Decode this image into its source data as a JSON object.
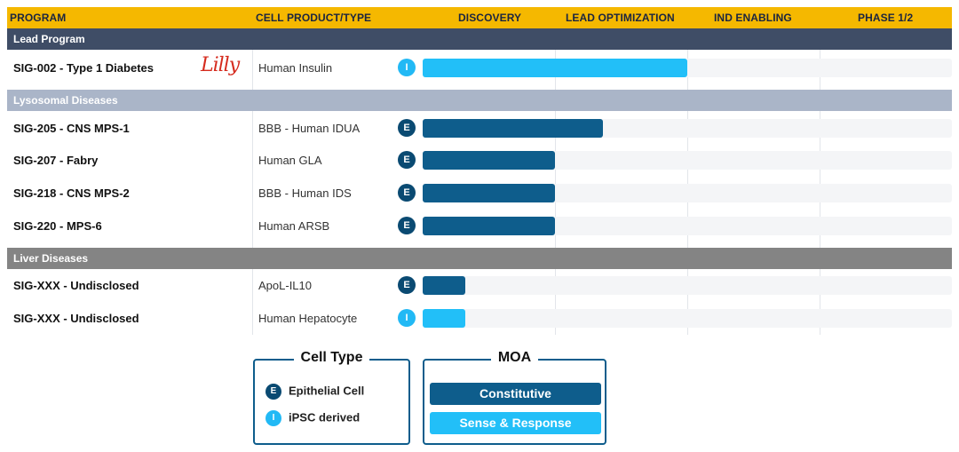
{
  "header": {
    "program": "PROGRAM",
    "cell_product": "CELL PRODUCT/TYPE",
    "phases": [
      "DISCOVERY",
      "LEAD OPTIMIZATION",
      "IND ENABLING",
      "PHASE 1/2"
    ]
  },
  "sections": {
    "lead": "Lead Program",
    "lysosomal": "Lysosomal Diseases",
    "liver": "Liver Diseases"
  },
  "partner_logo_text": "Lilly",
  "rows": [
    {
      "program": "SIG-002 - Type 1 Diabetes",
      "product": "Human Insulin",
      "cell_type": "I",
      "moa": "Sense & Response",
      "progress": 0.5
    },
    {
      "program": "SIG-205 - CNS MPS-1",
      "product": "BBB - Human IDUA",
      "cell_type": "E",
      "moa": "Constitutive",
      "progress": 0.34
    },
    {
      "program": "SIG-207 - Fabry",
      "product": "Human GLA",
      "cell_type": "E",
      "moa": "Constitutive",
      "progress": 0.25
    },
    {
      "program": "SIG-218 - CNS MPS-2",
      "product": "BBB - Human IDS",
      "cell_type": "E",
      "moa": "Constitutive",
      "progress": 0.25
    },
    {
      "program": "SIG-220 - MPS-6",
      "product": "Human ARSB",
      "cell_type": "E",
      "moa": "Constitutive",
      "progress": 0.25
    },
    {
      "program": "SIG-XXX - Undisclosed",
      "product": "ApoL-IL10",
      "cell_type": "E",
      "moa": "Constitutive",
      "progress": 0.08
    },
    {
      "program": "SIG-XXX - Undisclosed",
      "product": "Human Hepatocyte",
      "cell_type": "I",
      "moa": "Sense & Response",
      "progress": 0.08
    }
  ],
  "legend": {
    "cell_type": {
      "title": "Cell Type",
      "items": [
        {
          "badge": "E",
          "label": "Epithelial Cell"
        },
        {
          "badge": "I",
          "label": "iPSC derived"
        }
      ]
    },
    "moa": {
      "title": "MOA",
      "constitutive": "Constitutive",
      "sense_response": "Sense & Response"
    }
  },
  "colors": {
    "header_bg": "#f5b800",
    "lead_section": "#3f4d66",
    "lysosomal_section": "#aab5c8",
    "liver_section": "#848484",
    "epithelial_badge": "#0a4a72",
    "ipsc_badge": "#22b9f5",
    "constitutive_bar": "#0e5d8c",
    "sense_response_bar": "#22bff8"
  }
}
